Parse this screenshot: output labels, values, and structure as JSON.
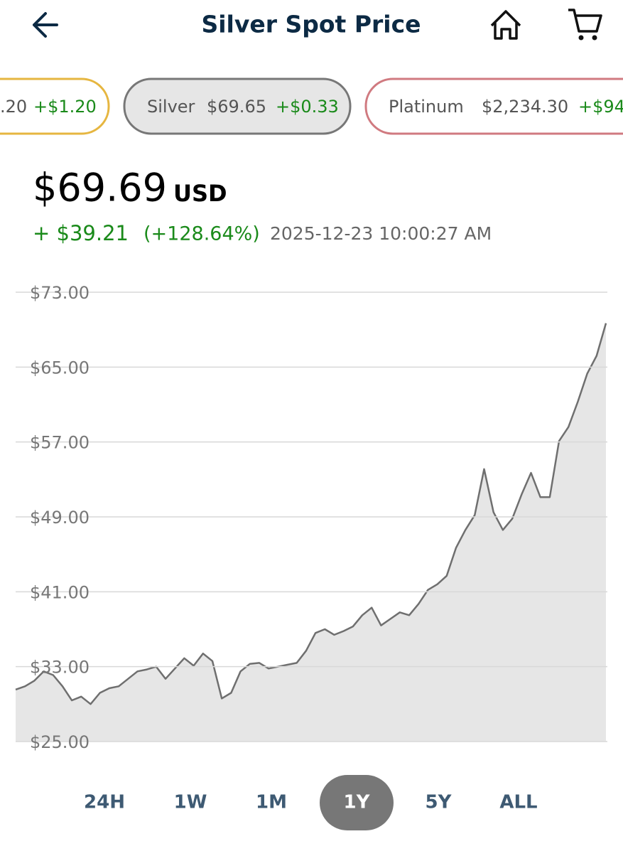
{
  "header": {
    "title": "Silver Spot Price"
  },
  "tickers": [
    {
      "price": ".20",
      "change": "+$1.20"
    },
    {
      "name": "Silver",
      "price": "$69.65",
      "change": "+$0.33"
    },
    {
      "name": "Platinum",
      "price": "$2,234.30",
      "change": "+$94"
    }
  ],
  "quote": {
    "price": "$69.69",
    "currency": "USD",
    "change": "+ $39.21",
    "change_percent": "(+128.64%)",
    "timestamp": "2025-12-23 10:00:27 AM"
  },
  "chart_data": {
    "type": "area",
    "color": "#6f6f6f",
    "fill": "#e6e6e6",
    "grid": true,
    "ylim": [
      25,
      73
    ],
    "yticks": [
      {
        "value": 25,
        "label": "$25.00"
      },
      {
        "value": 33,
        "label": "$33.00"
      },
      {
        "value": 41,
        "label": "$41.00"
      },
      {
        "value": 49,
        "label": "$49.00"
      },
      {
        "value": 57,
        "label": "$57.00"
      },
      {
        "value": 65,
        "label": "$65.00"
      },
      {
        "value": 73,
        "label": "$73.00"
      }
    ],
    "values": [
      30.55,
      30.9,
      31.5,
      32.5,
      32.1,
      30.9,
      29.4,
      29.8,
      29.0,
      30.2,
      30.7,
      30.9,
      31.7,
      32.5,
      32.7,
      33.0,
      31.7,
      32.8,
      33.9,
      33.1,
      34.4,
      33.6,
      29.6,
      30.2,
      32.5,
      33.3,
      33.4,
      32.8,
      33.0,
      33.2,
      33.4,
      34.7,
      36.6,
      37.0,
      36.4,
      36.8,
      37.3,
      38.5,
      39.3,
      37.4,
      38.1,
      38.8,
      38.5,
      39.7,
      41.2,
      41.8,
      42.7,
      45.7,
      47.6,
      49.2,
      54.1,
      49.5,
      47.6,
      48.8,
      51.4,
      53.7,
      51.1,
      51.1,
      57.1,
      58.6,
      61.3,
      64.3,
      66.2,
      69.69
    ]
  },
  "ranges": {
    "options": [
      "24H",
      "1W",
      "1M",
      "1Y",
      "5Y",
      "ALL"
    ],
    "selected": "1Y"
  }
}
